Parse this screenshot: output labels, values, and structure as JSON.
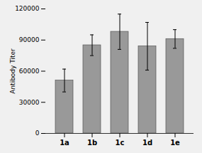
{
  "chart_data": {
    "type": "bar",
    "categories": [
      "1a",
      "1b",
      "1c",
      "1d",
      "1e"
    ],
    "values": [
      51000,
      85000,
      98000,
      84000,
      91000
    ],
    "errors": [
      11000,
      10000,
      17000,
      23000,
      9000
    ],
    "color": "#999999",
    "ylabel": "Antibody Titer",
    "ylim": [
      0,
      120000
    ],
    "yticks": [
      0,
      30000,
      60000,
      90000,
      120000
    ],
    "grid": false
  }
}
